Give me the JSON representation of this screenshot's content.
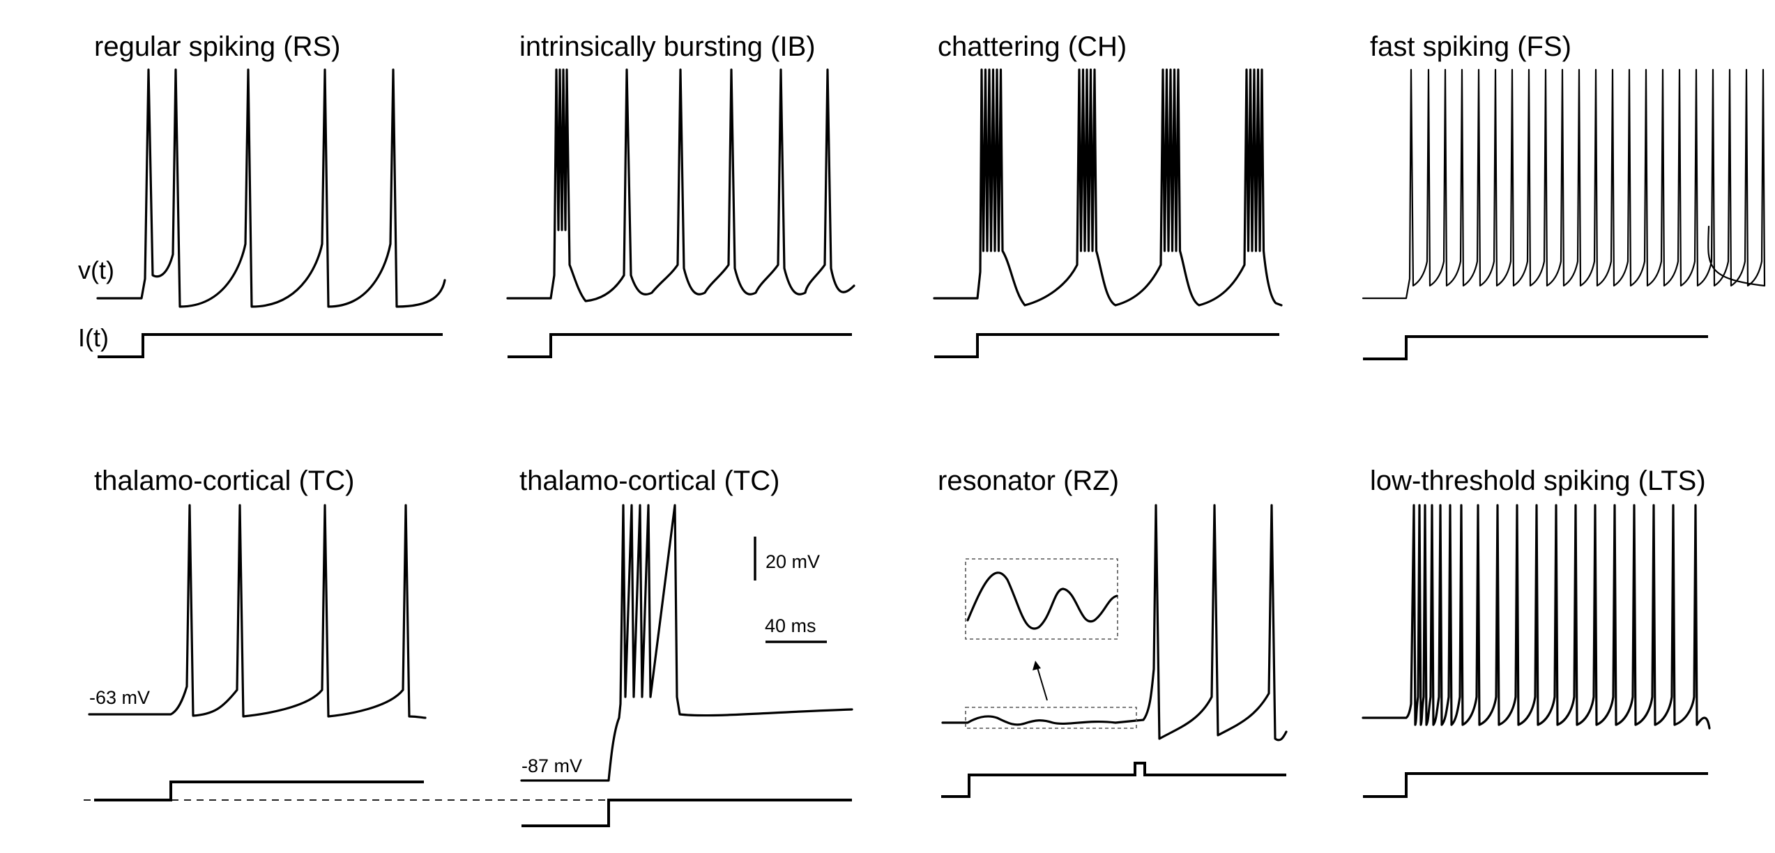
{
  "panels": [
    {
      "id": "rs",
      "title": "regular spiking (RS)"
    },
    {
      "id": "ib",
      "title": "intrinsically bursting (IB)"
    },
    {
      "id": "ch",
      "title": "chattering (CH)"
    },
    {
      "id": "fs",
      "title": "fast spiking (FS)"
    },
    {
      "id": "tc1",
      "title": "thalamo-cortical (TC)"
    },
    {
      "id": "tc2",
      "title": "thalamo-cortical (TC)"
    },
    {
      "id": "rz",
      "title": "resonator (RZ)"
    },
    {
      "id": "lts",
      "title": "low-threshold spiking (LTS)"
    }
  ],
  "labels": {
    "voltage": "v(t)",
    "current": "I(t)",
    "rest_tc1": "-63 mV",
    "rest_tc2": "-87 mV"
  },
  "scale_bar": {
    "voltage": "20 mV",
    "time": "40 ms"
  }
}
